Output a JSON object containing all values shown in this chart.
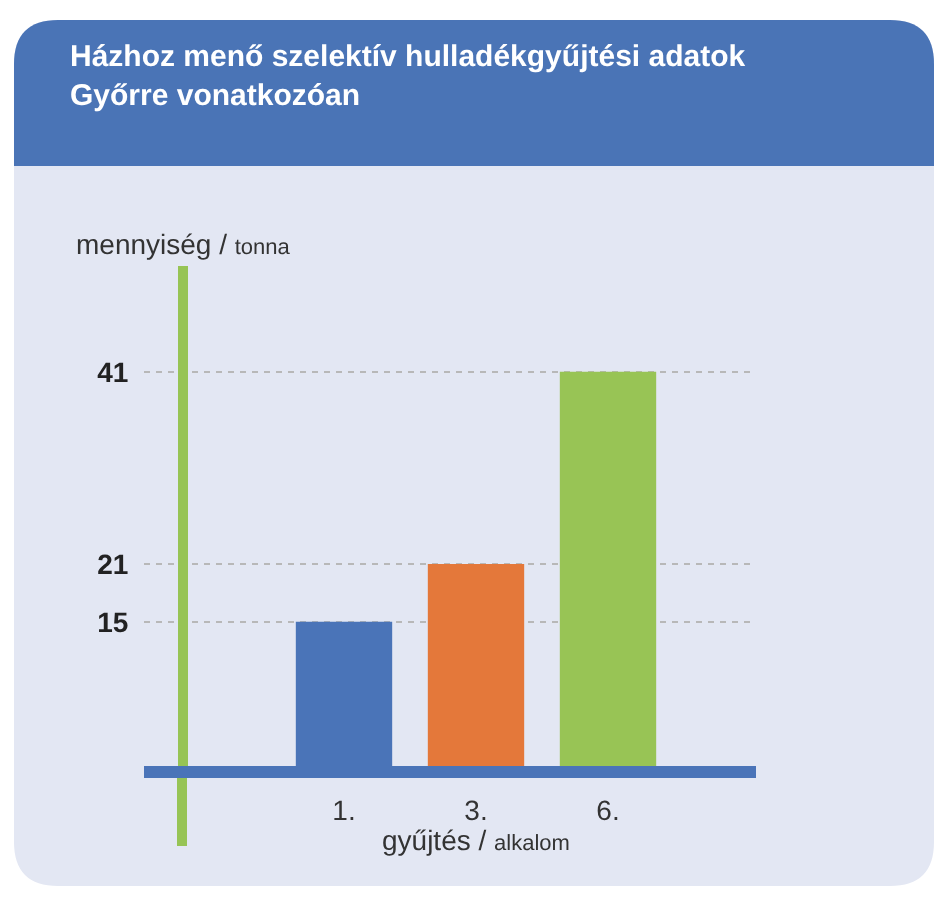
{
  "chart_data": {
    "type": "bar",
    "title": "Házhoz menő szelektív hulladékgyűjtési adatok\nGyőrre vonatkozóan",
    "xlabel": "gyűjtés / alkalom",
    "ylabel": "mennyiség / tonna",
    "categories": [
      "1.",
      "3.",
      "6."
    ],
    "values": [
      15,
      21,
      41
    ],
    "colors": [
      "#4a74b8",
      "#e4783a",
      "#98c455"
    ],
    "ylim": [
      0,
      52
    ],
    "yticks": [
      15,
      21,
      41
    ],
    "grid": "y"
  }
}
